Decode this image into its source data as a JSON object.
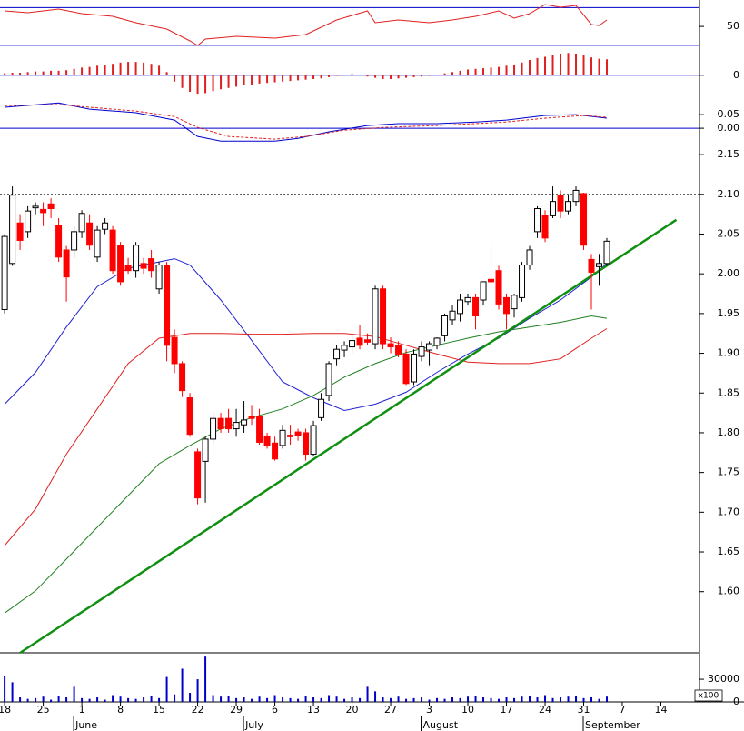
{
  "chart_data": [
    {
      "type": "line",
      "ylim": [
        28,
        78
      ],
      "yticks": [
        50
      ],
      "levels": [
        30,
        70
      ],
      "level_color": "#0000cc",
      "series": [
        {
          "color": "#e02020",
          "x": [
            0,
            3,
            7,
            10,
            14,
            17,
            21,
            24,
            25,
            26,
            30,
            35,
            39,
            43,
            47,
            48,
            51,
            55,
            58,
            61,
            64,
            66,
            68,
            70,
            72,
            74,
            76,
            77,
            78
          ],
          "values": [
            66.5,
            64.5,
            68.4,
            63.6,
            60.7,
            54,
            47.2,
            34.7,
            29.9,
            36.7,
            39.5,
            37.6,
            41.5,
            56.8,
            66.5,
            54,
            56.8,
            54,
            56.8,
            60.7,
            66.5,
            58.8,
            63.6,
            73.2,
            70.3,
            72.2,
            52,
            51,
            56.8
          ]
        }
      ]
    },
    {
      "type": "bar",
      "ylim": [
        -0.036,
        0.044
      ],
      "yticks": [
        0
      ],
      "levels": [
        0
      ],
      "level_color": "#0000cc",
      "color": "#e02020",
      "values": [
        0.003,
        0.004,
        0.004,
        0.005,
        0.006,
        0.006,
        0.007,
        0.007,
        0.008,
        0.01,
        0.012,
        0.013,
        0.015,
        0.016,
        0.018,
        0.02,
        0.021,
        0.021,
        0.02,
        0.018,
        0.015,
        0.005,
        -0.01,
        -0.02,
        -0.026,
        -0.029,
        -0.028,
        -0.025,
        -0.022,
        -0.02,
        -0.018,
        -0.016,
        -0.015,
        -0.013,
        -0.012,
        -0.011,
        -0.01,
        -0.009,
        -0.008,
        -0.007,
        -0.006,
        -0.005,
        -0.003,
        -0.001,
        0.001,
        0.002,
        0.001,
        -0.002,
        -0.004,
        -0.006,
        -0.006,
        -0.005,
        -0.004,
        -0.003,
        -0.002,
        -0.001,
        0.001,
        0.003,
        0.005,
        0.007,
        0.009,
        0.01,
        0.011,
        0.012,
        0.013,
        0.015,
        0.017,
        0.02,
        0.024,
        0.027,
        0.029,
        0.032,
        0.034,
        0.035,
        0.034,
        0.032,
        0.028,
        0.026,
        0.025
      ]
    },
    {
      "type": "line",
      "ylim": [
        -0.063,
        0.117
      ],
      "yticks": [
        {
          "value": 0.05,
          "label": "0.05"
        },
        {
          "value": 0,
          "label": "0.00"
        }
      ],
      "levels": [
        0
      ],
      "level_color": "#0000cc",
      "series": [
        {
          "color": "#0000cc",
          "x": [
            0,
            7,
            11,
            17,
            22,
            25,
            28,
            35,
            38,
            42,
            47,
            51,
            56,
            61,
            65,
            70,
            74,
            78
          ],
          "values": [
            0.077,
            0.093,
            0.07,
            0.057,
            0.03,
            -0.03,
            -0.047,
            -0.047,
            -0.037,
            -0.013,
            0.01,
            0.017,
            0.017,
            0.023,
            0.03,
            0.047,
            0.05,
            0.037
          ]
        },
        {
          "color": "#e02020",
          "style": "dashed",
          "x": [
            0,
            7,
            11,
            17,
            22,
            25,
            29,
            35,
            39,
            44,
            49,
            56,
            65,
            70,
            75,
            78
          ],
          "values": [
            0.083,
            0.087,
            0.077,
            0.063,
            0.043,
            0.003,
            -0.03,
            -0.04,
            -0.03,
            -0.007,
            0.003,
            0.01,
            0.023,
            0.037,
            0.047,
            0.04
          ]
        }
      ]
    },
    {
      "type": "candlestick",
      "ylim": [
        1.523,
        2.173
      ],
      "yticks": [
        2.15,
        {
          "value": 2.1,
          "label": "2.10"
        },
        2.05,
        {
          "value": 2,
          "label": "2.00"
        },
        1.95,
        {
          "value": 1.9,
          "label": "1.90"
        },
        1.85,
        {
          "value": 1.8,
          "label": "1.80"
        },
        1.75,
        {
          "value": 1.7,
          "label": "1.70"
        },
        1.65,
        {
          "value": 1.6,
          "label": "1.60"
        }
      ],
      "xlim": [
        -0.6,
        90
      ],
      "xticks": [
        {
          "value": 0,
          "label": "18"
        },
        {
          "value": 5,
          "label": "25"
        },
        {
          "value": 10,
          "label": "1"
        },
        {
          "value": 15,
          "label": "8"
        },
        {
          "value": 20,
          "label": "15"
        },
        {
          "value": 25,
          "label": "22"
        },
        {
          "value": 30,
          "label": "29"
        },
        {
          "value": 35,
          "label": "6"
        },
        {
          "value": 40,
          "label": "13"
        },
        {
          "value": 45,
          "label": "20"
        },
        {
          "value": 50,
          "label": "27"
        },
        {
          "value": 55,
          "label": "3"
        },
        {
          "value": 60,
          "label": "10"
        },
        {
          "value": 65,
          "label": "17"
        },
        {
          "value": 70,
          "label": "24"
        },
        {
          "value": 75,
          "label": "31"
        },
        {
          "value": 80,
          "label": "7"
        },
        {
          "value": 85,
          "label": "14"
        }
      ],
      "months": [
        {
          "value": 10,
          "label": "June"
        },
        {
          "value": 32,
          "label": "July"
        },
        {
          "value": 55,
          "label": "August"
        },
        {
          "value": 76,
          "label": "September"
        }
      ],
      "up_color": "#ffffff",
      "down_color": "#ff0000",
      "open": [
        1.955,
        2.013,
        2.064,
        2.053,
        2.083,
        2.081,
        2.088,
        2.061,
        2.03,
        2.03,
        2.053,
        2.064,
        2.021,
        2.056,
        2.055,
        2.036,
        2.011,
        2.004,
        2.013,
        2.019,
        1.981,
        2.011,
        1.92,
        1.887,
        1.844,
        1.776,
        1.764,
        1.792,
        1.818,
        1.818,
        1.805,
        1.81,
        1.82,
        1.821,
        1.796,
        1.787,
        1.784,
        1.797,
        1.801,
        1.8,
        1.773,
        1.819,
        1.847,
        1.893,
        1.904,
        1.908,
        1.919,
        1.917,
        1.912,
        1.981,
        1.912,
        1.91,
        1.899,
        1.864,
        1.896,
        1.904,
        1.91,
        1.922,
        1.942,
        1.95,
        1.965,
        1.97,
        1.967,
        1.993,
        2.004,
        1.97,
        1.956,
        1.97,
        2.011,
        2.053,
        2.073,
        2.073,
        2.099,
        2.079,
        2.091,
        2.101,
        2.018,
        2.009,
        2.013
      ],
      "high": [
        2.05,
        2.11,
        2.075,
        2.085,
        2.09,
        2.09,
        2.095,
        2.07,
        2.035,
        2.06,
        2.08,
        2.075,
        2.06,
        2.07,
        2.06,
        2.04,
        2.02,
        2.04,
        2.02,
        2.03,
        2.015,
        2.015,
        1.93,
        1.89,
        1.85,
        1.78,
        1.795,
        1.825,
        1.825,
        1.83,
        1.83,
        1.84,
        1.835,
        1.83,
        1.8,
        1.795,
        1.81,
        1.81,
        1.805,
        1.805,
        1.815,
        1.85,
        1.89,
        1.91,
        1.915,
        1.925,
        1.935,
        1.925,
        1.985,
        1.985,
        1.92,
        1.915,
        1.905,
        1.905,
        1.915,
        1.915,
        1.92,
        1.95,
        1.96,
        1.975,
        1.975,
        1.975,
        1.99,
        2.04,
        2.01,
        1.975,
        1.975,
        2.015,
        2.035,
        2.085,
        2.08,
        2.11,
        2.105,
        2.1,
        2.11,
        2.102,
        2.025,
        2.025,
        2.045
      ],
      "low": [
        1.95,
        2.01,
        2.03,
        2.045,
        2.075,
        2.06,
        2.07,
        2.015,
        1.965,
        2.02,
        2.045,
        2.03,
        2.015,
        2.05,
        2.0,
        1.985,
        2.0,
        1.995,
        2.0,
        1.995,
        1.975,
        1.89,
        1.875,
        1.845,
        1.795,
        1.71,
        1.712,
        1.785,
        1.8,
        1.8,
        1.795,
        1.8,
        1.81,
        1.785,
        1.78,
        1.765,
        1.78,
        1.785,
        1.79,
        1.765,
        1.77,
        1.815,
        1.84,
        1.885,
        1.895,
        1.9,
        1.905,
        1.91,
        1.905,
        1.905,
        1.9,
        1.895,
        1.86,
        1.86,
        1.89,
        1.885,
        1.905,
        1.915,
        1.935,
        1.94,
        1.96,
        1.93,
        1.96,
        1.985,
        1.955,
        1.93,
        1.945,
        1.965,
        2.005,
        2.045,
        2.04,
        2.07,
        2.07,
        2.075,
        2.085,
        2.03,
        1.955,
        1.985,
        2.01
      ],
      "close": [
        2.047,
        2.099,
        2.042,
        2.079,
        2.085,
        2.077,
        2.082,
        2.021,
        1.996,
        2.053,
        2.076,
        2.036,
        2.055,
        2.064,
        2.004,
        1.99,
        2.004,
        2.036,
        2.007,
        2.004,
        2.011,
        1.91,
        1.887,
        1.853,
        1.798,
        1.718,
        1.792,
        1.818,
        1.805,
        1.805,
        1.813,
        1.816,
        1.818,
        1.788,
        1.784,
        1.767,
        1.803,
        1.795,
        1.796,
        1.773,
        1.809,
        1.842,
        1.887,
        1.905,
        1.91,
        1.916,
        1.91,
        1.914,
        1.981,
        1.912,
        1.908,
        1.899,
        1.862,
        1.899,
        1.908,
        1.912,
        1.919,
        1.947,
        1.953,
        1.967,
        1.97,
        1.947,
        1.99,
        1.99,
        1.962,
        1.95,
        1.973,
        2.011,
        2.03,
        2.082,
        2.045,
        2.091,
        2.079,
        2.091,
        2.105,
        2.036,
        2.002,
        2.013,
        2.041
      ],
      "reference_line": 2.1,
      "lines": [
        {
          "color": "#2020d0",
          "x": [
            0,
            4,
            8,
            12,
            16,
            20,
            22,
            24,
            28,
            32,
            36,
            40,
            44,
            48,
            52,
            56,
            60,
            64,
            68,
            72,
            76,
            78
          ],
          "values": [
            1.836,
            1.876,
            1.933,
            1.984,
            2.007,
            2.015,
            2.019,
            2.011,
            1.967,
            1.916,
            1.864,
            1.844,
            1.828,
            1.836,
            1.851,
            1.876,
            1.899,
            1.919,
            1.944,
            1.967,
            1.996,
            2.013
          ]
        },
        {
          "color": "#e02020",
          "x": [
            0,
            4,
            8,
            12,
            16,
            20,
            24,
            28,
            32,
            36,
            40,
            44,
            48,
            52,
            56,
            60,
            64,
            68,
            72,
            76,
            78
          ],
          "values": [
            1.658,
            1.704,
            1.773,
            1.83,
            1.887,
            1.919,
            1.925,
            1.925,
            1.924,
            1.924,
            1.925,
            1.925,
            1.921,
            1.91,
            1.899,
            1.889,
            1.887,
            1.887,
            1.893,
            1.919,
            1.931
          ]
        },
        {
          "color": "#208020",
          "x": [
            0,
            4,
            8,
            12,
            16,
            20,
            24,
            28,
            32,
            36,
            40,
            44,
            48,
            52,
            56,
            60,
            64,
            68,
            72,
            76,
            78
          ],
          "values": [
            1.573,
            1.601,
            1.641,
            1.681,
            1.721,
            1.761,
            1.784,
            1.805,
            1.819,
            1.83,
            1.847,
            1.87,
            1.887,
            1.901,
            1.91,
            1.919,
            1.927,
            1.933,
            1.939,
            1.947,
            1.944
          ]
        }
      ],
      "trendline": {
        "color": "#109010",
        "x": [
          2,
          87
        ],
        "values": [
          1.523,
          2.068
        ]
      }
    },
    {
      "type": "bar",
      "ylim": [
        0,
        65000
      ],
      "yticks": [
        30000,
        0
      ],
      "color": "#0000cc",
      "unit_label": "x100",
      "values": [
        34000,
        26000,
        6000,
        4000,
        5000,
        7000,
        3000,
        8000,
        6000,
        20000,
        5000,
        4000,
        6000,
        3000,
        9000,
        7000,
        5000,
        4000,
        6000,
        8000,
        5000,
        33000,
        10000,
        44000,
        12000,
        30000,
        60000,
        9000,
        7000,
        8000,
        5000,
        6000,
        4000,
        7000,
        5000,
        9000,
        6000,
        5000,
        4000,
        8000,
        6000,
        5000,
        9000,
        7000,
        4000,
        6000,
        5000,
        20000,
        14000,
        6000,
        5000,
        7000,
        4000,
        5000,
        6000,
        3000,
        5000,
        4000,
        6000,
        5000,
        7000,
        8000,
        6000,
        5000,
        4000,
        6000,
        5000,
        7000,
        8000,
        6000,
        9000,
        5000,
        6000,
        7000,
        8000,
        5000,
        6000,
        4000,
        7000
      ]
    }
  ]
}
